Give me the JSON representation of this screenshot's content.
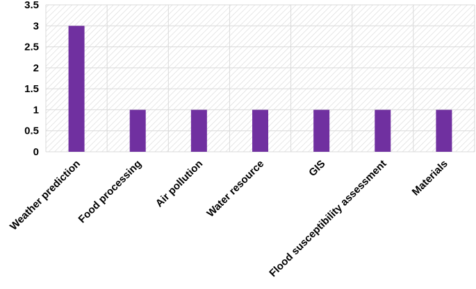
{
  "chart_data": {
    "type": "bar",
    "categories": [
      "Weather prediction",
      "Food processing",
      "Air pollution",
      "Water resource",
      "GIS",
      "Flood susceptibility assessment",
      "Materials"
    ],
    "values": [
      3,
      1,
      1,
      1,
      1,
      1,
      1
    ],
    "ylim": [
      0,
      3.5
    ],
    "yticks": [
      "0",
      "0.5",
      "1",
      "1.5",
      "2",
      "2.5",
      "3",
      "3.5"
    ],
    "grid": true,
    "legend": "none",
    "bar_color": "#7030a0",
    "title": "",
    "xlabel": "",
    "ylabel": ""
  }
}
